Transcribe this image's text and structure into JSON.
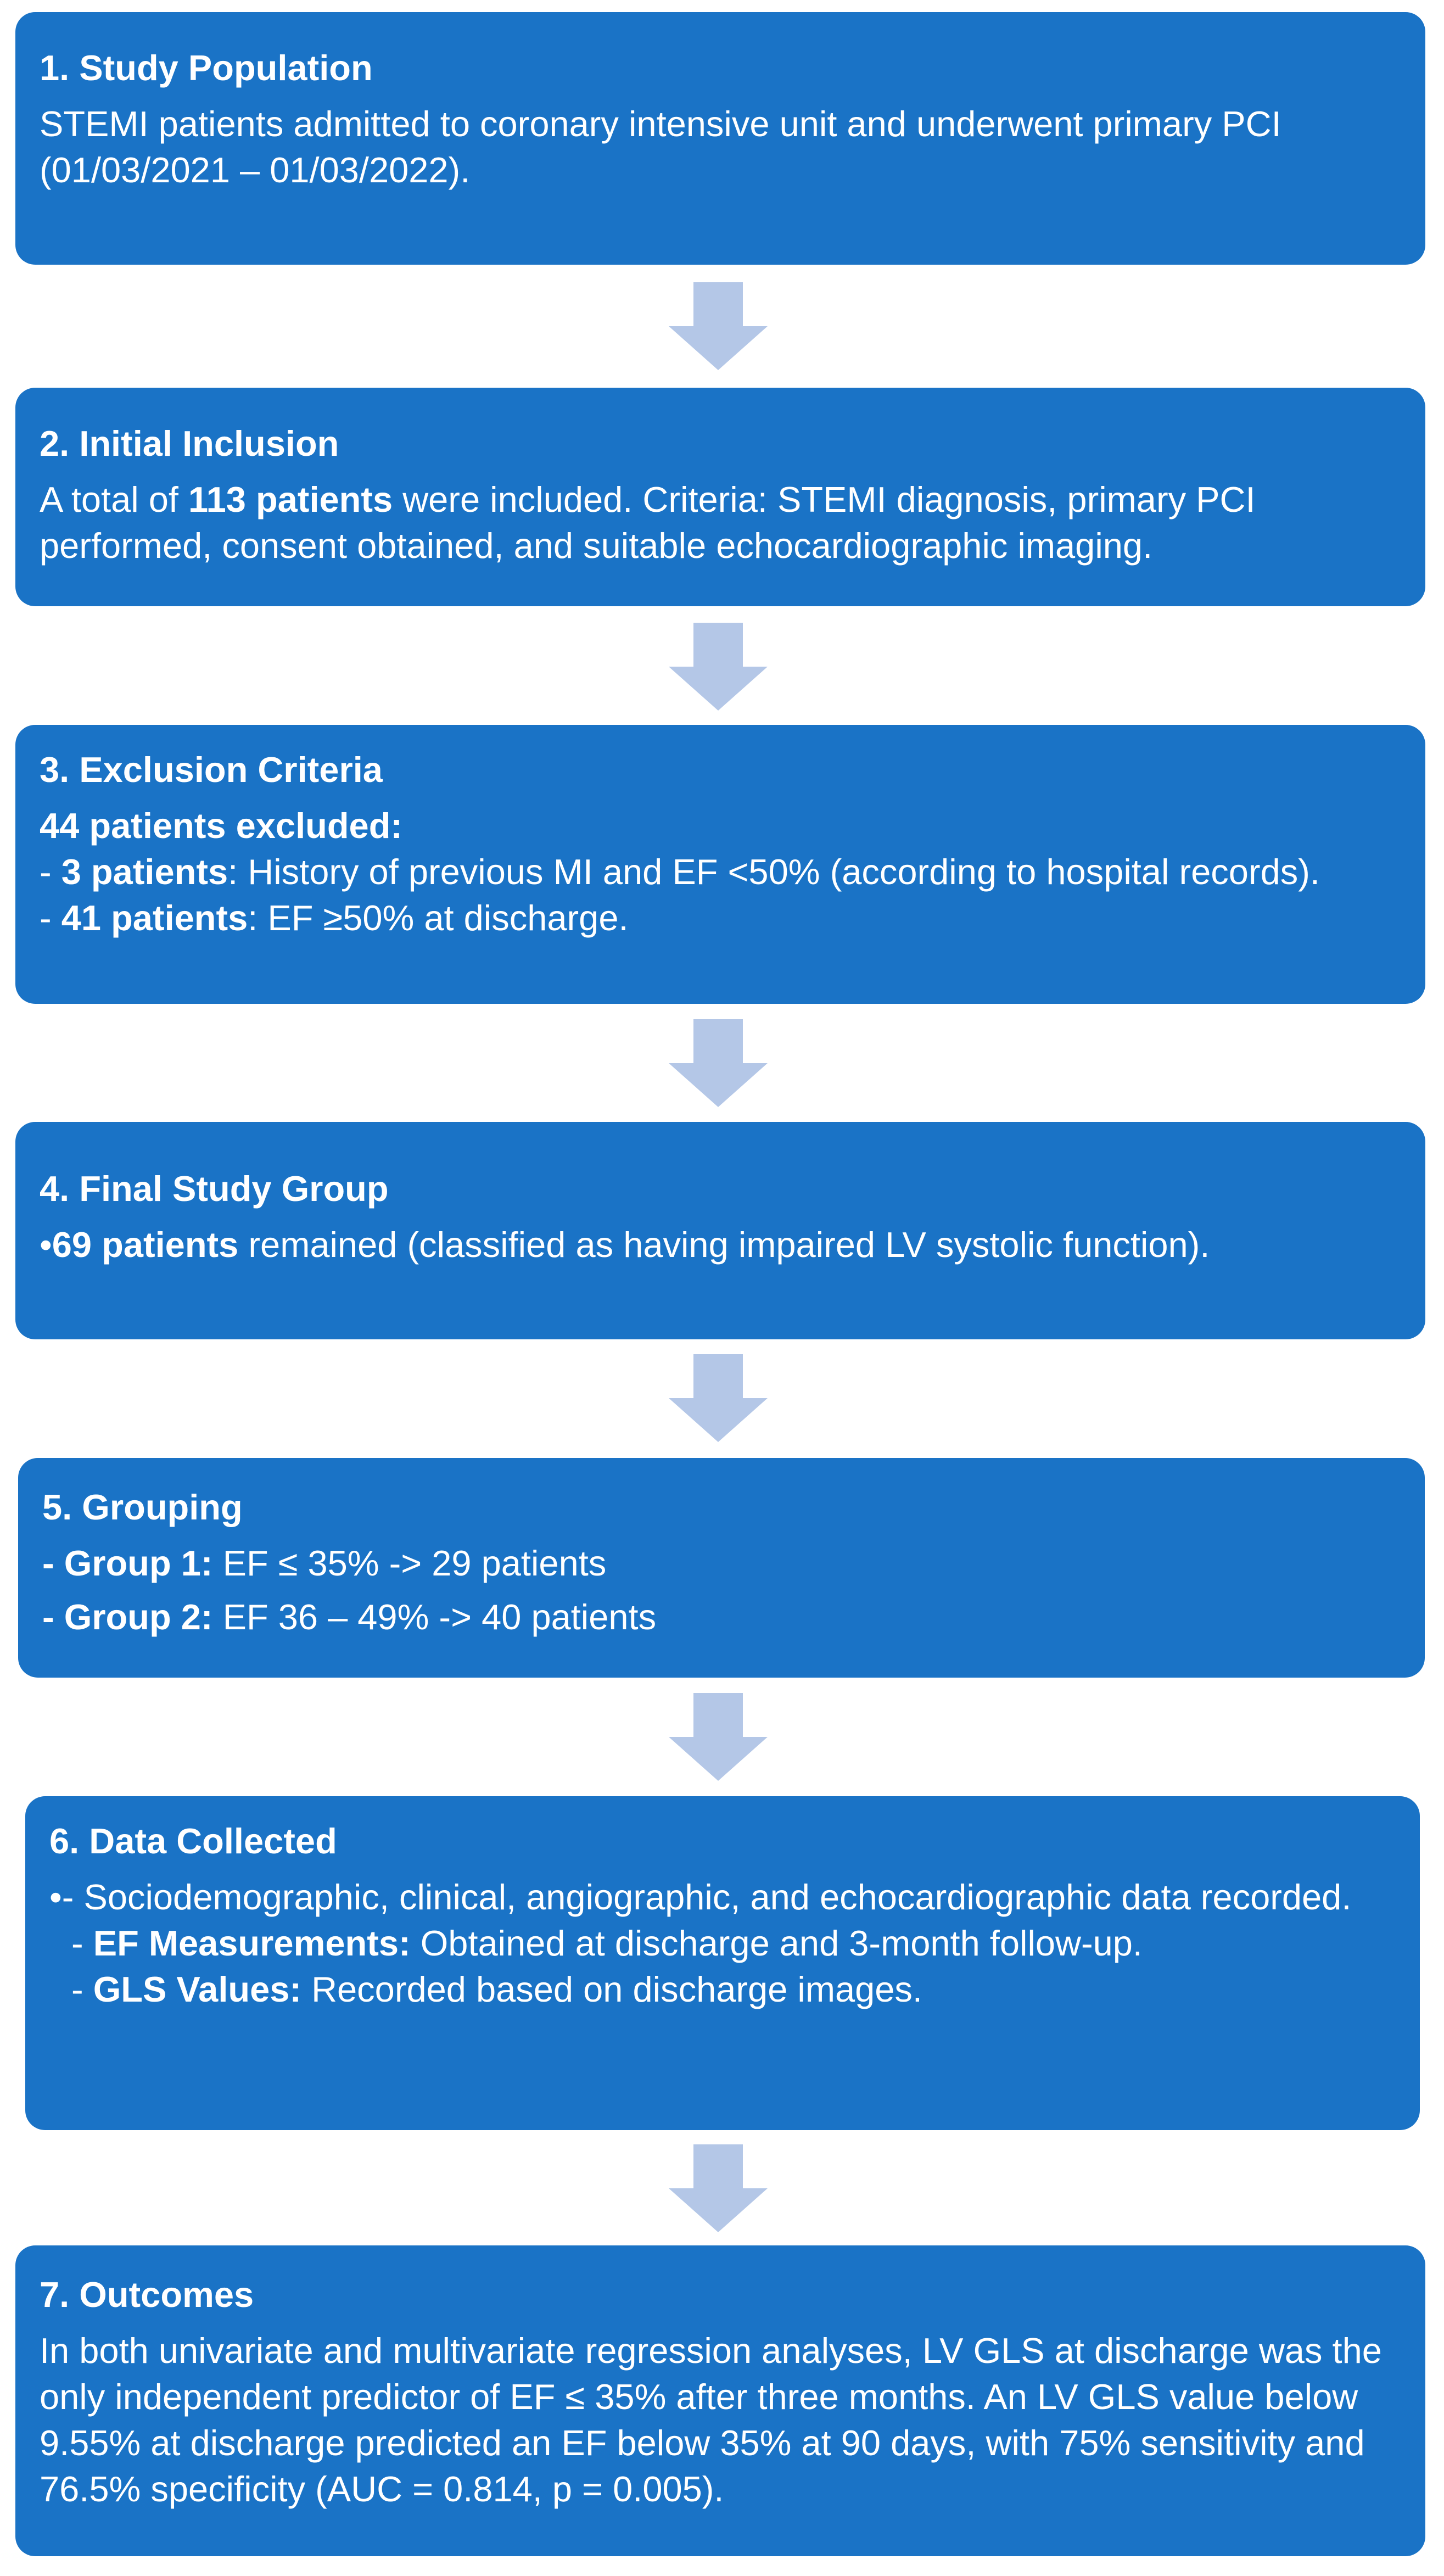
{
  "boxes": {
    "b1": {
      "title": "1. Study Population",
      "text": "STEMI patients admitted to coronary intensive unit and underwent primary PCI (01/03/2021 – 01/03/2022)."
    },
    "b2": {
      "title": "2. Initial Inclusion",
      "pre": "A total of ",
      "bold": "113 patients",
      "post": " were included. Criteria: STEMI diagnosis, primary PCI performed, consent obtained, and suitable echocardiographic imaging."
    },
    "b3": {
      "title": "3. Exclusion Criteria",
      "headline": "44 patients excluded:",
      "items": [
        {
          "dash": "- ",
          "bold": "3 patients",
          "text": ": History of previous MI and EF <50% (according to hospital records)."
        },
        {
          "dash": "- ",
          "bold": "41 patients",
          "text": ": EF ≥50% at discharge."
        }
      ]
    },
    "b4": {
      "title": "4. Final Study Group",
      "bullet": "•",
      "bold": "69 patients",
      "text": " remained (classified as having impaired LV systolic function)."
    },
    "b5": {
      "title": "5. Grouping",
      "items": [
        {
          "bold": "- Group 1:",
          "text": " EF ≤ 35% -> 29 patients"
        },
        {
          "bold": "- Group 2:",
          "text": " EF 36 – 49% -> 40 patients"
        }
      ]
    },
    "b6": {
      "title": "6. Data Collected",
      "line1": "•- Sociodemographic, clinical, angiographic, and echocardiographic data recorded.",
      "items": [
        {
          "dash": "- ",
          "bold": "EF Measurements:",
          "text": " Obtained at discharge and 3-month follow-up."
        },
        {
          "dash": "- ",
          "bold": "GLS Values:",
          "text": " Recorded based on discharge images."
        }
      ]
    },
    "b7": {
      "title": "7. Outcomes",
      "text": "In both univariate and multivariate regression analyses, LV GLS at discharge was the only independent predictor of EF ≤ 35% after three months. An LV GLS value below 9.55% at discharge predicted an EF below 35% at 90 days, with 75% sensitivity and 76.5% specificity (AUC = 0.814, p = 0.005)."
    }
  },
  "colors": {
    "box": "#1a73c6",
    "arrow": "#b4c7e7",
    "text": "#ffffff"
  }
}
